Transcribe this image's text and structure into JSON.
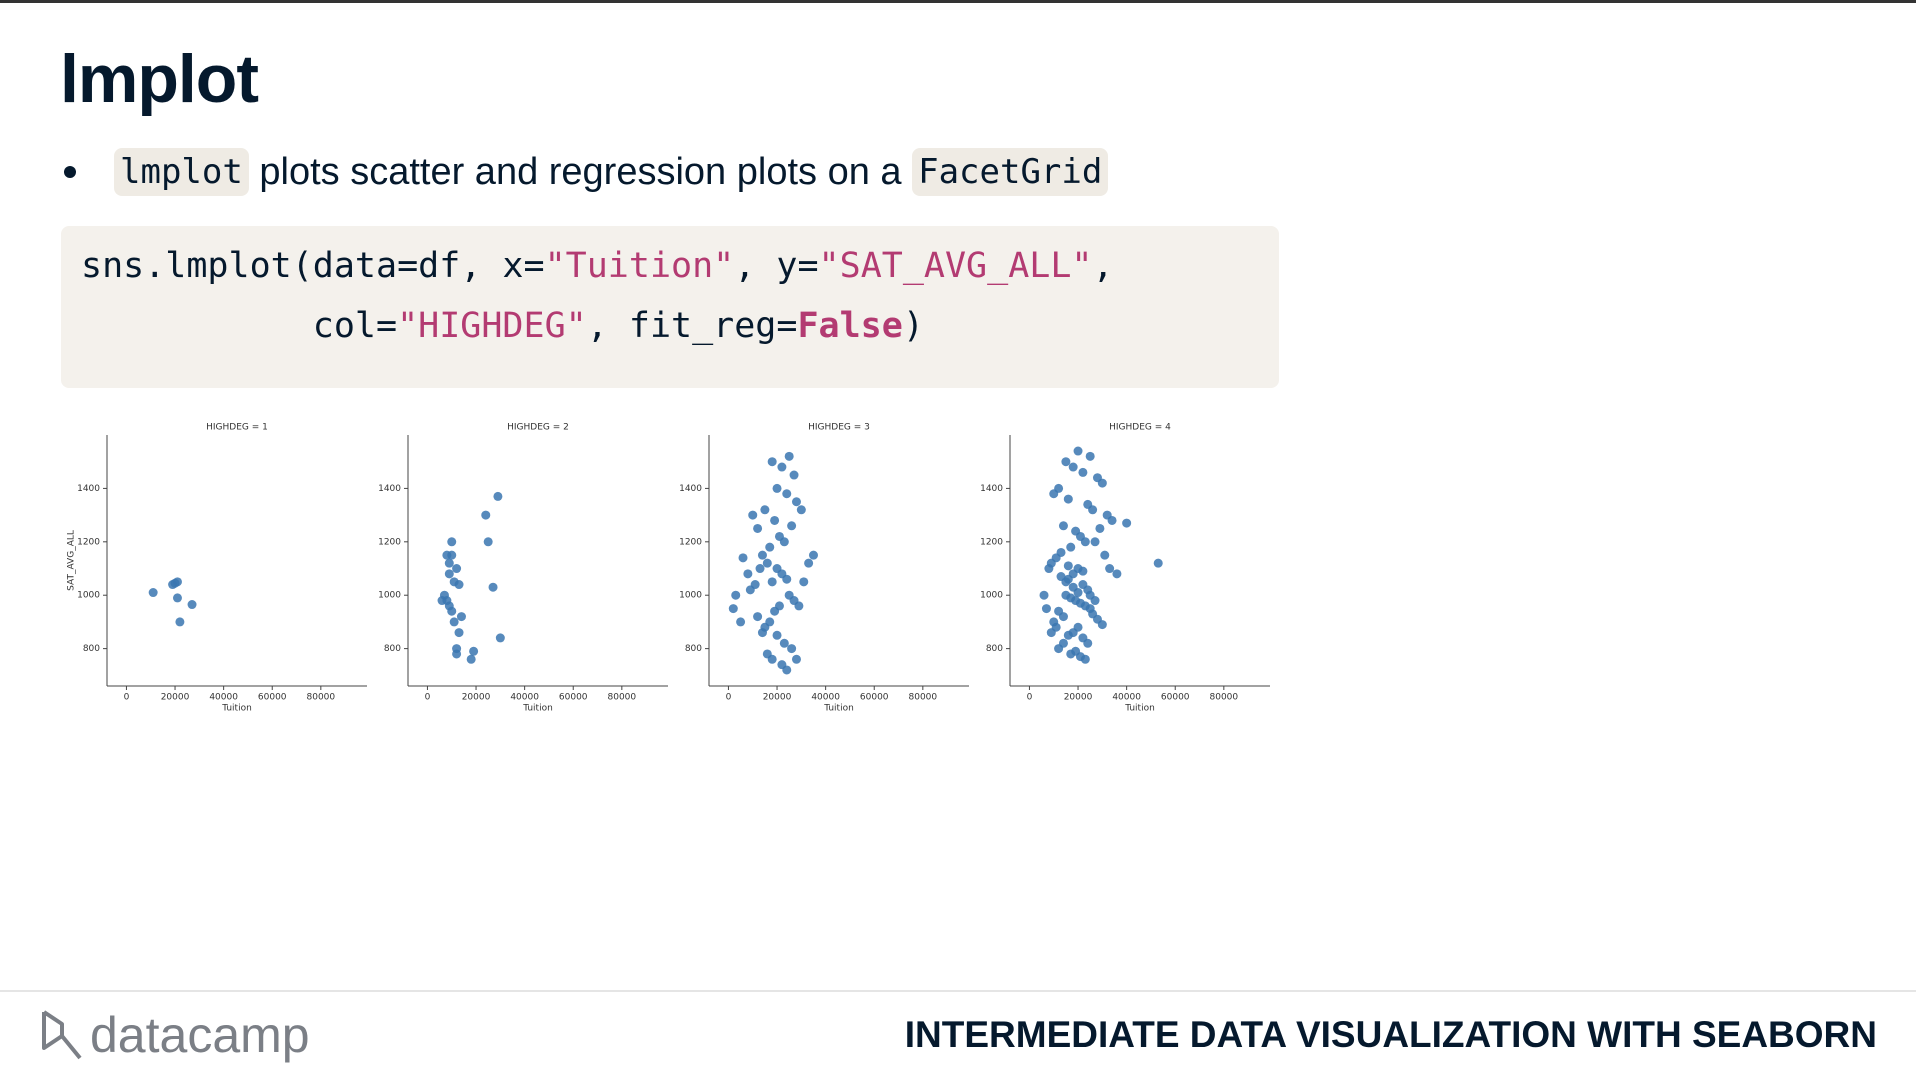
{
  "header": {
    "title": "lmplot"
  },
  "bullet": {
    "chip1": "lmplot",
    "text": " plots scatter and regression plots on a ",
    "chip2": "FacetGrid"
  },
  "code": {
    "lines": [
      [
        {
          "text": "sns.lmplot(data=df, x=",
          "color": "#05192d"
        },
        {
          "text": "\"Tuition\"",
          "color": "#b33b72"
        },
        {
          "text": ", y=",
          "color": "#05192d"
        },
        {
          "text": "\"SAT_AVG_ALL\"",
          "color": "#b33b72"
        },
        {
          "text": ",",
          "color": "#05192d"
        }
      ],
      [
        {
          "text": "           col=",
          "color": "#05192d"
        },
        {
          "text": "\"HIGHDEG\"",
          "color": "#b33b72"
        },
        {
          "text": ", fit_reg=",
          "color": "#05192d"
        },
        {
          "text": "False",
          "color": "#b33b72",
          "bold": true
        },
        {
          "text": ")",
          "color": "#05192d"
        }
      ]
    ]
  },
  "chart_data": [
    {
      "type": "scatter",
      "title": "HIGHDEG = 1",
      "x_label": "Tuition",
      "y_label": "SAT_AVG_ALL",
      "color": "#3a75b0",
      "xlim": [
        -8000,
        99000
      ],
      "ylim": [
        660,
        1600
      ],
      "xticks": [
        0,
        20000,
        40000,
        60000,
        80000
      ],
      "yticks": [
        800,
        1000,
        1200,
        1400
      ],
      "x": [
        11000,
        19000,
        21000,
        20000,
        21000,
        27000,
        22000
      ],
      "values": [
        1010,
        1040,
        1050,
        1045,
        990,
        965,
        900
      ]
    },
    {
      "type": "scatter",
      "title": "HIGHDEG = 2",
      "x_label": "Tuition",
      "color": "#3a75b0",
      "xlim": [
        -8000,
        99000
      ],
      "ylim": [
        660,
        1600
      ],
      "xticks": [
        0,
        20000,
        40000,
        60000,
        80000
      ],
      "yticks": [
        800,
        1000,
        1200,
        1400
      ],
      "x": [
        29000,
        24000,
        25000,
        10000,
        8000,
        10000,
        12000,
        9000,
        11000,
        13000,
        7000,
        6000,
        9000,
        10000,
        14000,
        11000,
        8000,
        27000,
        30000,
        13000,
        12000,
        19000,
        18000,
        12000,
        9000
      ],
      "values": [
        1370,
        1300,
        1200,
        1200,
        1150,
        1150,
        1100,
        1080,
        1050,
        1040,
        1000,
        980,
        960,
        940,
        920,
        900,
        980,
        1030,
        840,
        860,
        800,
        790,
        760,
        780,
        1120
      ]
    },
    {
      "type": "scatter",
      "title": "HIGHDEG = 3",
      "x_label": "Tuition",
      "color": "#3a75b0",
      "xlim": [
        -8000,
        99000
      ],
      "ylim": [
        660,
        1600
      ],
      "xticks": [
        0,
        20000,
        40000,
        60000,
        80000
      ],
      "yticks": [
        800,
        1000,
        1200,
        1400
      ],
      "x": [
        18000,
        22000,
        25000,
        27000,
        20000,
        24000,
        28000,
        15000,
        10000,
        12000,
        19000,
        21000,
        23000,
        26000,
        30000,
        17000,
        14000,
        16000,
        13000,
        20000,
        22000,
        24000,
        18000,
        11000,
        9000,
        3000,
        2000,
        5000,
        25000,
        27000,
        29000,
        31000,
        33000,
        35000,
        21000,
        19000,
        17000,
        15000,
        20000,
        23000,
        26000,
        14000,
        12000,
        16000,
        18000,
        22000,
        24000,
        28000,
        8000,
        6000
      ],
      "values": [
        1500,
        1480,
        1520,
        1450,
        1400,
        1380,
        1350,
        1320,
        1300,
        1250,
        1280,
        1220,
        1200,
        1260,
        1320,
        1180,
        1150,
        1120,
        1100,
        1100,
        1080,
        1060,
        1050,
        1040,
        1020,
        1000,
        950,
        900,
        1000,
        980,
        960,
        1050,
        1120,
        1150,
        960,
        940,
        900,
        880,
        850,
        820,
        800,
        860,
        920,
        780,
        760,
        740,
        720,
        760,
        1080,
        1140
      ]
    },
    {
      "type": "scatter",
      "title": "HIGHDEG = 4",
      "x_label": "Tuition",
      "color": "#3a75b0",
      "xlim": [
        -8000,
        99000
      ],
      "ylim": [
        660,
        1600
      ],
      "xticks": [
        0,
        20000,
        40000,
        60000,
        80000
      ],
      "yticks": [
        800,
        1000,
        1200,
        1400
      ],
      "x": [
        20000,
        25000,
        15000,
        18000,
        22000,
        28000,
        30000,
        12000,
        10000,
        16000,
        24000,
        26000,
        32000,
        34000,
        14000,
        19000,
        21000,
        23000,
        17000,
        13000,
        11000,
        9000,
        8000,
        27000,
        29000,
        31000,
        33000,
        36000,
        40000,
        53000,
        20000,
        18000,
        16000,
        22000,
        24000,
        15000,
        17000,
        19000,
        21000,
        23000,
        25000,
        12000,
        14000,
        10000,
        26000,
        28000,
        30000,
        20000,
        18000,
        16000,
        22000,
        14000,
        12000,
        24000,
        19000,
        17000,
        21000,
        23000,
        15000,
        13000,
        6000,
        7000,
        25000,
        27000,
        9000,
        11000,
        20000,
        18000,
        22000,
        16000
      ],
      "values": [
        1540,
        1520,
        1500,
        1480,
        1460,
        1440,
        1420,
        1400,
        1380,
        1360,
        1340,
        1320,
        1300,
        1280,
        1260,
        1240,
        1220,
        1200,
        1180,
        1160,
        1140,
        1120,
        1100,
        1200,
        1250,
        1150,
        1100,
        1080,
        1270,
        1120,
        1100,
        1080,
        1060,
        1040,
        1020,
        1000,
        990,
        980,
        970,
        960,
        950,
        940,
        920,
        900,
        930,
        910,
        890,
        880,
        860,
        850,
        840,
        820,
        800,
        820,
        790,
        780,
        770,
        760,
        1050,
        1070,
        1000,
        950,
        1000,
        980,
        860,
        880,
        1010,
        1030,
        1090,
        1110
      ]
    }
  ],
  "footer": {
    "logo": "datacamp",
    "course": "INTERMEDIATE DATA VISUALIZATION WITH SEABORN"
  }
}
